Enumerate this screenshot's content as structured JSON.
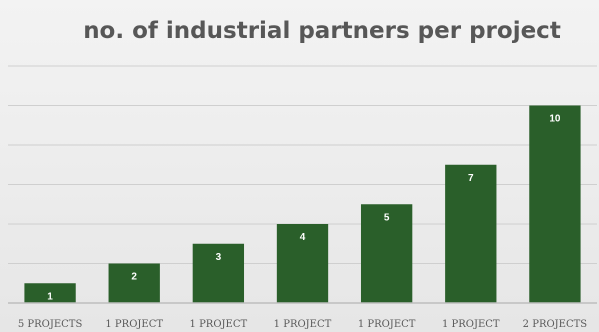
{
  "chart_data": {
    "type": "bar",
    "title": "no. of industrial partners per project",
    "categories": [
      "5 PROJECTS",
      "1 PROJECT",
      "1 PROJECT",
      "1 PROJECT",
      "1 PROJECT",
      "1 PROJECT",
      "2 PROJECTS"
    ],
    "values": [
      1,
      2,
      3,
      4,
      5,
      7,
      10
    ],
    "ylim": [
      0,
      12
    ],
    "y_axis_labels_visible": false,
    "grid": true,
    "data_labels": true,
    "legend": "none",
    "colors": {
      "bar": "#2a5f2a",
      "grid": "#cfcfcf",
      "axis": "#bdbdbd",
      "title": "#575757"
    }
  }
}
